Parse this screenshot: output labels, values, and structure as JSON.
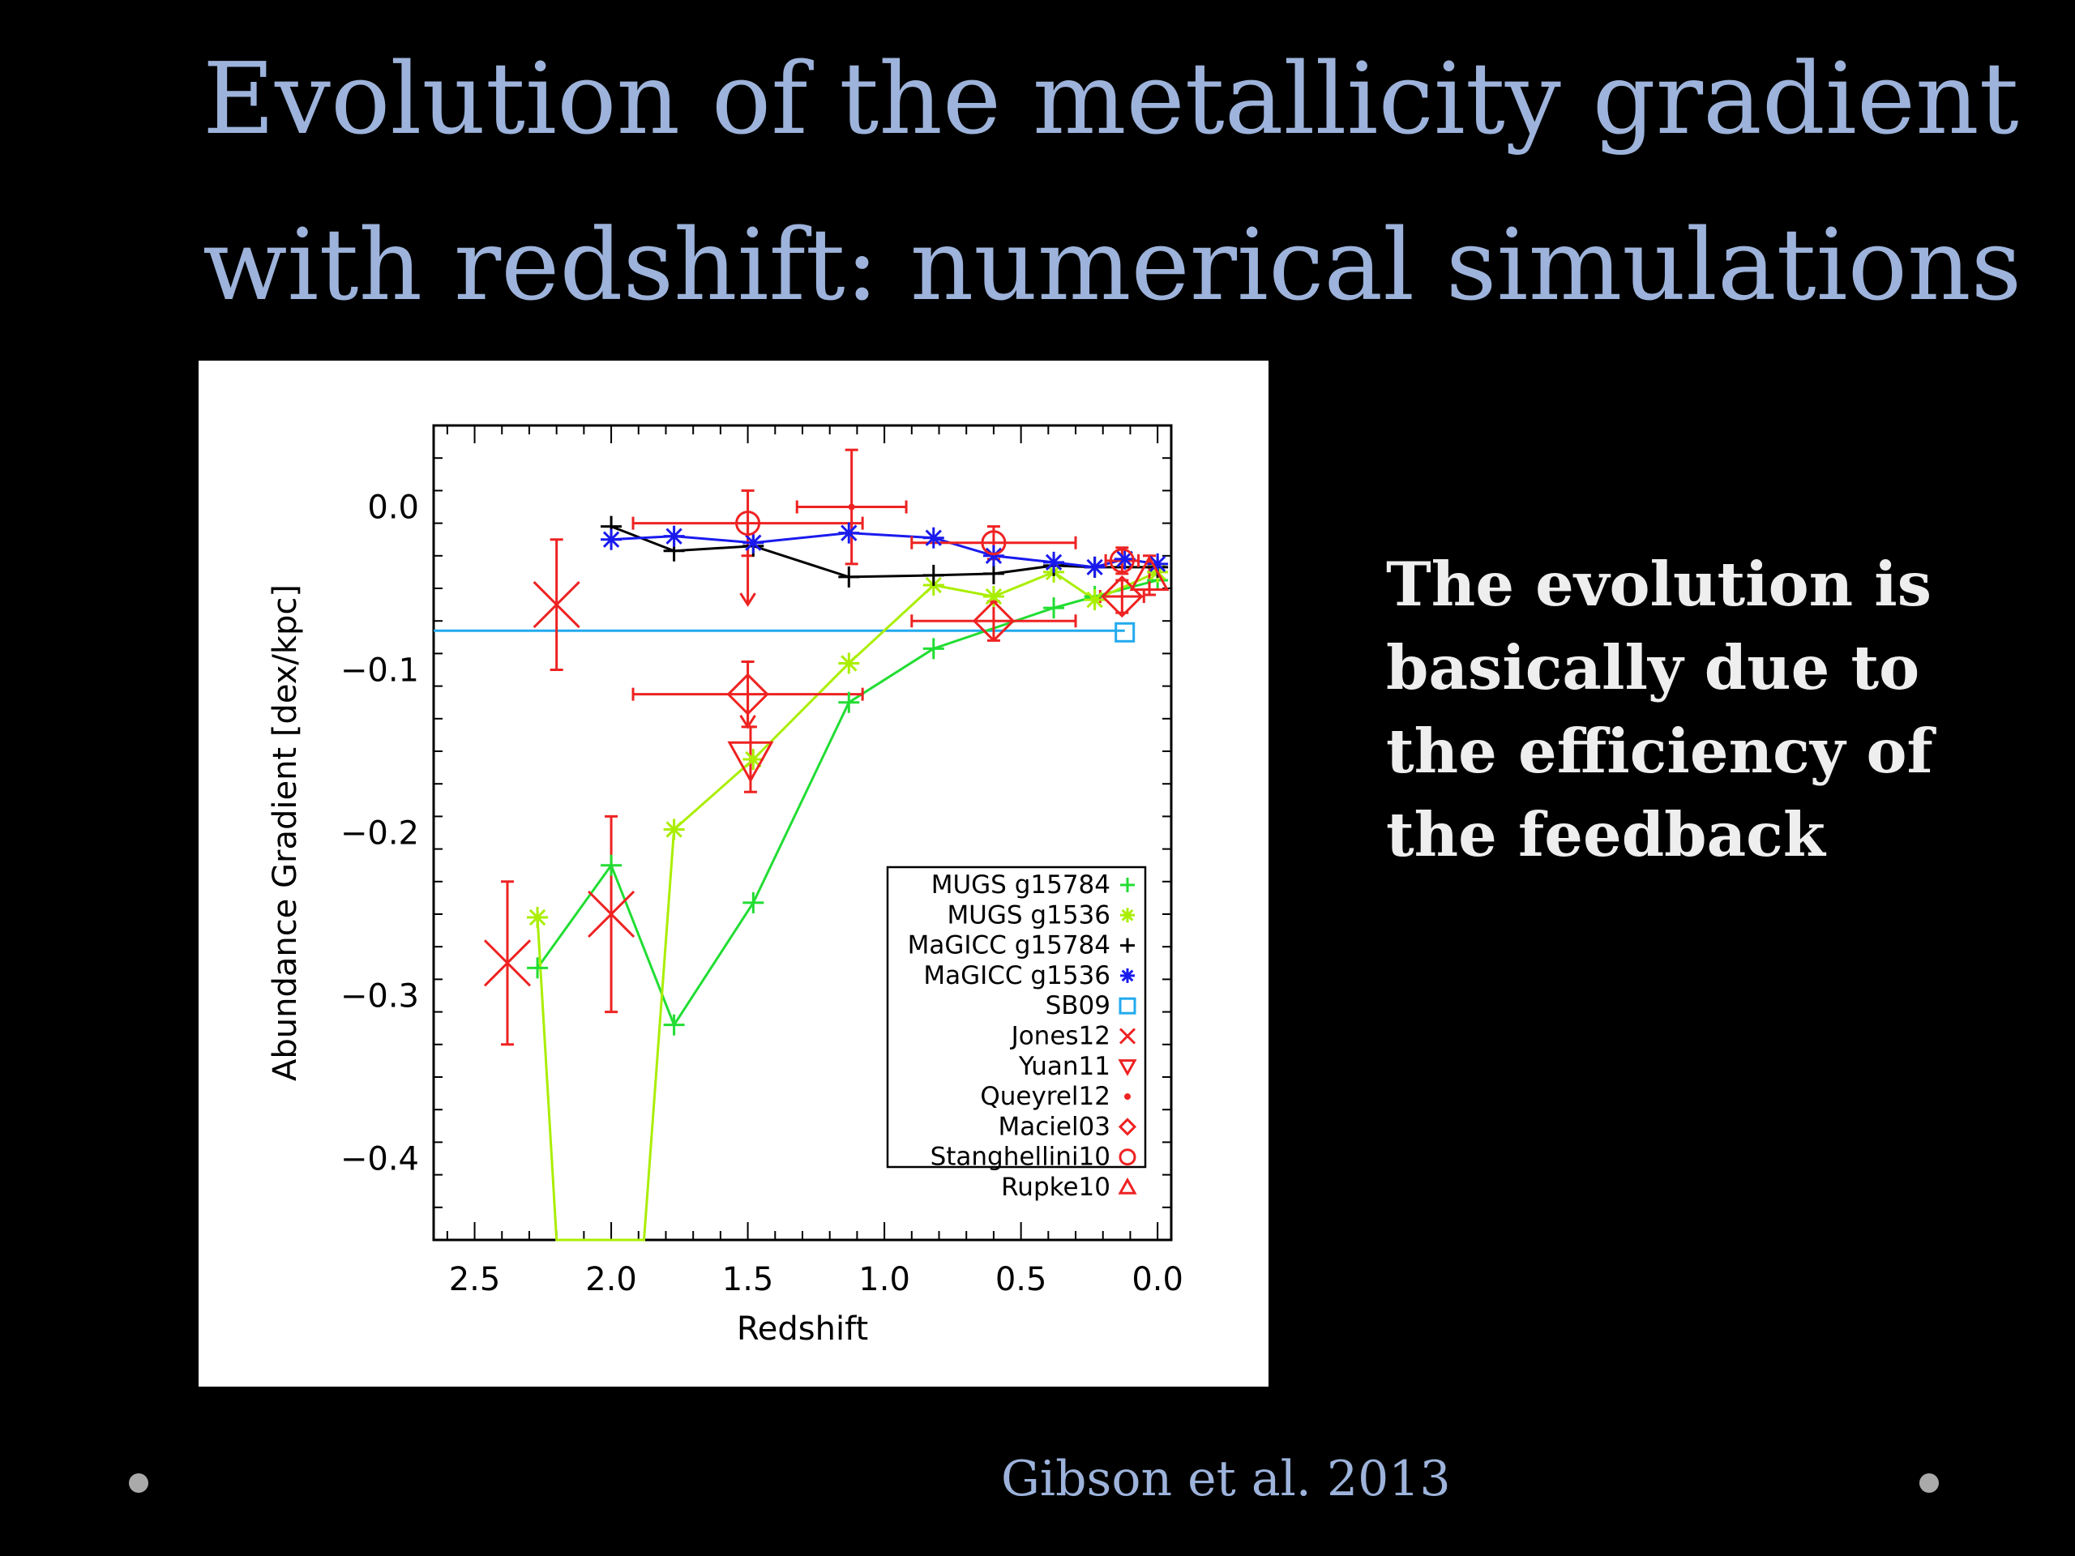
{
  "title": {
    "line1": "Evolution of the metallicity gradient",
    "line2": "with redshift: numerical simulations"
  },
  "side_text": {
    "lines": [
      "The evolution is",
      "basically due to",
      "the efficiency of",
      "the feedback"
    ]
  },
  "citation": "Gibson et al. 2013",
  "colors": {
    "title": "#9db3db",
    "side_text": "#eeeeee",
    "background": "#000000",
    "plot_background": "#ffffff"
  },
  "chart_data": {
    "type": "scatter",
    "title": "",
    "xlabel": "Redshift",
    "ylabel": "Abundance Gradient [dex/kpc]",
    "xlim": [
      2.65,
      -0.05
    ],
    "ylim": [
      -0.45,
      0.05
    ],
    "x_reversed": true,
    "xticks": [
      {
        "v": 2.5,
        "label": "2.5"
      },
      {
        "v": 2.0,
        "label": "2.0"
      },
      {
        "v": 1.5,
        "label": "1.5"
      },
      {
        "v": 1.0,
        "label": "1.0"
      },
      {
        "v": 0.5,
        "label": "0.5"
      },
      {
        "v": 0.0,
        "label": "0.0"
      }
    ],
    "yticks": [
      {
        "v": 0.0,
        "label": "0.0"
      },
      {
        "v": -0.1,
        "label": "−0.1"
      },
      {
        "v": -0.2,
        "label": "−0.2"
      },
      {
        "v": -0.3,
        "label": "−0.3"
      },
      {
        "v": -0.4,
        "label": "−0.4"
      }
    ],
    "grid": false,
    "legend_position": "bottom-right",
    "legend": [
      {
        "label": "MUGS g15784",
        "color": "#22dd33",
        "marker": "plus"
      },
      {
        "label": "MUGS g1536",
        "color": "#aaee00",
        "marker": "asterisk"
      },
      {
        "label": "MaGICC g15784",
        "color": "#000000",
        "marker": "plus"
      },
      {
        "label": "MaGICC g1536",
        "color": "#1a1aee",
        "marker": "asterisk"
      },
      {
        "label": "SB09",
        "color": "#22aaee",
        "marker": "square"
      },
      {
        "label": "Jones12",
        "color": "#ee2222",
        "marker": "x"
      },
      {
        "label": "Yuan11",
        "color": "#ee2222",
        "marker": "triangle-down"
      },
      {
        "label": "Queyrel12",
        "color": "#ee2222",
        "marker": "dot"
      },
      {
        "label": "Maciel03",
        "color": "#ee2222",
        "marker": "diamond"
      },
      {
        "label": "Stanghellini10",
        "color": "#ee2222",
        "marker": "circle"
      },
      {
        "label": "Rupke10",
        "color": "#ee2222",
        "marker": "triangle-up"
      }
    ],
    "series": [
      {
        "name": "MUGS g15784",
        "color": "#22dd33",
        "marker": "plus",
        "line": true,
        "x": [
          2.27,
          2.0,
          1.77,
          1.48,
          1.13,
          0.82,
          0.38,
          0.23,
          0.0
        ],
        "y": [
          -0.283,
          -0.22,
          -0.318,
          -0.243,
          -0.12,
          -0.087,
          -0.062,
          -0.055,
          -0.045
        ]
      },
      {
        "name": "MUGS g1536",
        "color": "#aaee00",
        "marker": "asterisk",
        "line": true,
        "x": [
          2.27,
          2.2,
          1.88,
          1.77,
          1.48,
          1.13,
          0.82,
          0.6,
          0.38,
          0.23,
          0.0
        ],
        "y": [
          -0.252,
          -0.48,
          -0.48,
          -0.198,
          -0.155,
          -0.096,
          -0.048,
          -0.055,
          -0.04,
          -0.057,
          -0.04
        ]
      },
      {
        "name": "MaGICC g15784",
        "color": "#000000",
        "marker": "plus",
        "line": true,
        "x": [
          2.0,
          1.77,
          1.48,
          1.13,
          0.82,
          0.6,
          0.38,
          0.23,
          0.0
        ],
        "y": [
          -0.012,
          -0.027,
          -0.024,
          -0.043,
          -0.042,
          -0.041,
          -0.036,
          -0.037,
          -0.037
        ]
      },
      {
        "name": "MaGICC g1536",
        "color": "#1a1aee",
        "marker": "asterisk",
        "line": true,
        "x": [
          2.0,
          1.77,
          1.48,
          1.13,
          0.82,
          0.6,
          0.38,
          0.23,
          0.12,
          0.0
        ],
        "y": [
          -0.02,
          -0.018,
          -0.022,
          -0.016,
          -0.019,
          -0.03,
          -0.034,
          -0.037,
          -0.032,
          -0.035
        ]
      },
      {
        "name": "SB09",
        "color": "#22aaee",
        "marker": "square",
        "line": false,
        "x": [
          0.12
        ],
        "y": [
          -0.077
        ]
      },
      {
        "name": "Jones12",
        "color": "#ee2222",
        "marker": "x",
        "line": false,
        "x": [
          2.38,
          2.2,
          2.0
        ],
        "y": [
          -0.28,
          -0.06,
          -0.25
        ],
        "yerr": [
          0.05,
          0.04,
          0.06
        ]
      },
      {
        "name": "Yuan11",
        "color": "#ee2222",
        "marker": "triangle-down",
        "line": false,
        "x": [
          1.49
        ],
        "y": [
          -0.155
        ],
        "yerr": [
          0.02
        ]
      },
      {
        "name": "Maciel03",
        "color": "#ee2222",
        "marker": "diamond",
        "line": false,
        "x": [
          1.5,
          0.6,
          0.13
        ],
        "y": [
          -0.115,
          -0.07,
          -0.055
        ],
        "yerr": [
          0.02,
          0.012,
          0.01
        ],
        "xerr": [
          0.42,
          0.3,
          0.08
        ]
      },
      {
        "name": "Stanghellini10",
        "color": "#ee2222",
        "marker": "circle",
        "line": false,
        "x": [
          1.5,
          0.6,
          0.13
        ],
        "y": [
          -0.01,
          -0.022,
          -0.033
        ],
        "yerr": [
          0.02,
          0.01,
          0.008
        ],
        "xerr": [
          0.42,
          0.3,
          0.06
        ]
      },
      {
        "name": "Rupke10",
        "color": "#ee2222",
        "marker": "triangle-up",
        "line": false,
        "x": [
          0.03
        ],
        "y": [
          -0.042
        ],
        "yerr": [
          0.012
        ]
      },
      {
        "name": "Queyrel12",
        "color": "#ee2222",
        "marker": "dot",
        "line": false,
        "x": [
          1.12
        ],
        "y": [
          -0.0
        ],
        "yerr": [
          0.035
        ],
        "xerr": [
          0.2
        ]
      }
    ],
    "arrows": [
      {
        "color": "#ee2222",
        "x": 1.5,
        "y_from": -0.01,
        "y_to": -0.06
      },
      {
        "color": "#ee2222",
        "x": 1.5,
        "y_from": -0.115,
        "y_to": -0.135
      }
    ],
    "hlines": [
      {
        "color": "#22aaee",
        "y": -0.076,
        "x_from": 2.65,
        "x_to": 0.12
      }
    ]
  }
}
